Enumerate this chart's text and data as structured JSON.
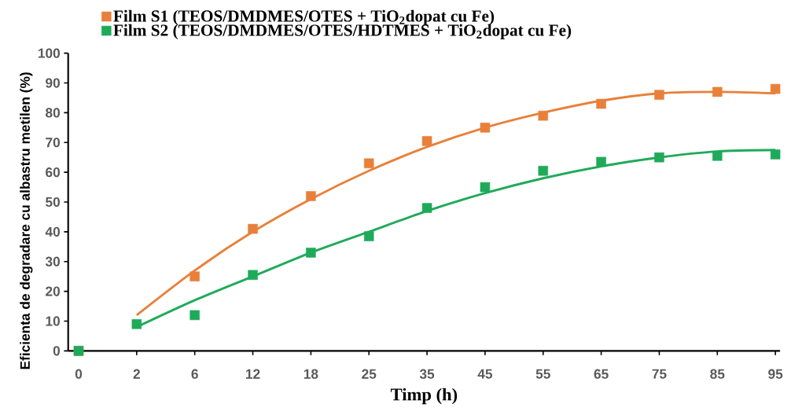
{
  "chart_data": {
    "type": "scatter",
    "xlabel": "Timp (h)",
    "ylabel": "Eficienta de degradare cu albastru metilen (%)",
    "categories": [
      "0",
      "2",
      "6",
      "12",
      "18",
      "25",
      "35",
      "45",
      "55",
      "65",
      "75",
      "85",
      "95"
    ],
    "ylim": [
      0,
      100
    ],
    "yticks": [
      0,
      10,
      20,
      30,
      40,
      50,
      60,
      70,
      80,
      90,
      100
    ],
    "legend": "top left",
    "marker": "square",
    "series": [
      {
        "type": "scatter",
        "name": "Film S1 (TEOS/DMDMES/OTES + TiO$_{2}$dopat cu Fe)",
        "color": "#e8803a",
        "values": [
          0,
          null,
          25,
          41,
          52,
          63,
          70.5,
          75,
          79,
          83,
          86,
          87,
          88
        ]
      },
      {
        "type": "scatter",
        "name": "Film S2 (TEOS/DMDMES/OTES/HDTMES + TiO$_{2}$dopat cu Fe)",
        "color": "#1faa5a",
        "values": [
          0,
          9,
          12,
          25.5,
          33,
          38.5,
          48,
          55,
          60.5,
          63.5,
          65,
          65.5,
          66
        ]
      },
      {
        "type": "line",
        "color": "#e8803a",
        "line_style": "solid",
        "marker": "none",
        "values": [
          null,
          12,
          27,
          40,
          51,
          60.5,
          68.5,
          75,
          80,
          84,
          86.5,
          87,
          86.5
        ]
      },
      {
        "type": "line",
        "color": "#1faa5a",
        "line_style": "solid",
        "marker": "none",
        "values": [
          null,
          8,
          17,
          25,
          33,
          40,
          47,
          53,
          58,
          62,
          65,
          67,
          67.5
        ]
      }
    ]
  }
}
